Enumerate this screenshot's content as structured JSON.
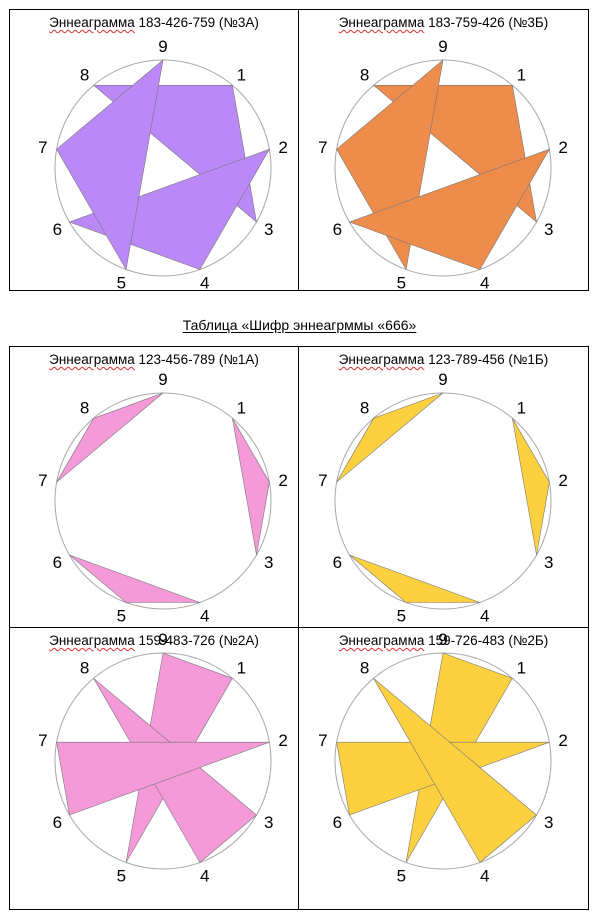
{
  "caption": "Таблица «Шифр эннеагрммы «666»",
  "colors": {
    "purple": "#bb88f8",
    "orange": "#ee8c4c",
    "pink": "#f59ad9",
    "yellow": "#fdd040",
    "circle": "#a8a8a8",
    "border": "#000000"
  },
  "diagrams": [
    {
      "id": "3a",
      "title_word": "Эннеаграмма",
      "title_rest": " 183-426-759 (№3А)",
      "color": "#bb88f8",
      "triads": [
        [
          1,
          8,
          3
        ],
        [
          4,
          2,
          6
        ],
        [
          7,
          5,
          9
        ]
      ]
    },
    {
      "id": "3b",
      "title_word": "Эннеаграмма",
      "title_rest": " 183-759-426 (№3Б)",
      "color": "#ee8c4c",
      "triads": [
        [
          1,
          8,
          3
        ],
        [
          7,
          5,
          9
        ],
        [
          4,
          2,
          6
        ]
      ]
    },
    {
      "id": "1a",
      "title_word": "Эннеаграмма",
      "title_rest": " 123-456-789 (№1А)",
      "color": "#f59ad9",
      "triads": [
        [
          1,
          2,
          3
        ],
        [
          4,
          5,
          6
        ],
        [
          7,
          8,
          9
        ]
      ]
    },
    {
      "id": "1b",
      "title_word": "Эннеаграмма",
      "title_rest": " 123-789-456 (№1Б)",
      "color": "#fdd040",
      "triads": [
        [
          1,
          2,
          3
        ],
        [
          7,
          8,
          9
        ],
        [
          4,
          5,
          6
        ]
      ]
    },
    {
      "id": "2a",
      "title_word": "Эннеаграмма",
      "title_rest": " 159-483-726 (№2А)",
      "color": "#f59ad9",
      "triads": [
        [
          1,
          5,
          9
        ],
        [
          4,
          8,
          3
        ],
        [
          7,
          2,
          6
        ]
      ]
    },
    {
      "id": "2b",
      "title_word": "Эннеаграмма",
      "title_rest": " 159-726-483 (№2Б)",
      "color": "#fdd040",
      "triads": [
        [
          1,
          5,
          9
        ],
        [
          7,
          2,
          6
        ],
        [
          4,
          8,
          3
        ]
      ]
    }
  ],
  "numbers": [
    "1",
    "2",
    "3",
    "4",
    "5",
    "6",
    "7",
    "8",
    "9"
  ]
}
